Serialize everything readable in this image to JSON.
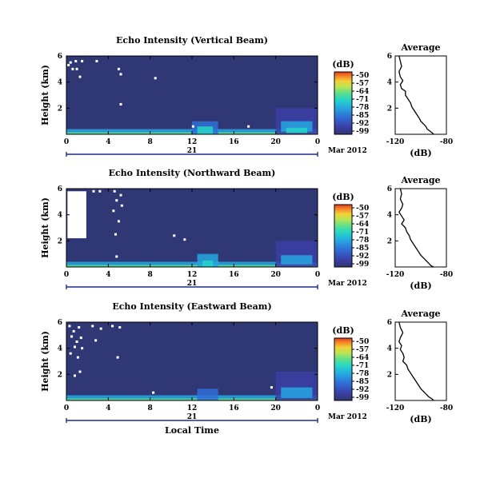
{
  "chart_data": [
    {
      "type": "heatmap",
      "title": "Echo Intensity (Vertical Beam)",
      "ylabel": "Height (km)",
      "x_ticks": [
        "0",
        "4",
        "8",
        "12",
        "16",
        "20",
        "0"
      ],
      "xlim": [
        0,
        24
      ],
      "y_ticks": [
        "6",
        "4",
        "2"
      ],
      "ylim": [
        0,
        6
      ],
      "date_day": "21",
      "date_month_year": "Mar 2012",
      "colorbar": {
        "unit": "(dB)",
        "ticks": [
          "-50",
          "-57",
          "-64",
          "-71",
          "-78",
          "-85",
          "-92",
          "-99"
        ],
        "range": [
          -99,
          -50
        ]
      },
      "noise_gaps": [
        [
          0.2,
          5.3
        ],
        [
          0.4,
          5.5
        ],
        [
          0.9,
          5.6
        ],
        [
          1.5,
          5.6
        ],
        [
          2.9,
          5.6
        ],
        [
          0.6,
          5.0
        ],
        [
          1.0,
          5.0
        ],
        [
          1.3,
          4.4
        ],
        [
          5.0,
          5.0
        ],
        [
          5.2,
          4.6
        ],
        [
          8.5,
          4.3
        ],
        [
          5.2,
          2.3
        ],
        [
          12.1,
          0.6
        ],
        [
          17.4,
          0.6
        ]
      ],
      "signal_regions": [
        {
          "x0": 0.0,
          "x1": 24.0,
          "y0": 0.0,
          "y1": 0.4,
          "level": -82
        },
        {
          "x0": 0.0,
          "x1": 24.0,
          "y0": 0.0,
          "y1": 0.15,
          "level": -72
        },
        {
          "x0": 20.0,
          "x1": 24.0,
          "y0": 0.0,
          "y1": 2.0,
          "level": -92
        },
        {
          "x0": 20.5,
          "x1": 23.5,
          "y0": 0.2,
          "y1": 1.0,
          "level": -85
        },
        {
          "x0": 21.0,
          "x1": 23.0,
          "y0": 0.1,
          "y1": 0.5,
          "level": -78
        },
        {
          "x0": 12.0,
          "x1": 14.5,
          "y0": 0.0,
          "y1": 1.0,
          "level": -86
        },
        {
          "x0": 12.5,
          "x1": 14.0,
          "y0": 0.0,
          "y1": 0.6,
          "level": -78
        }
      ]
    },
    {
      "type": "line",
      "title": "Average",
      "xlabel": "(dB)",
      "x_ticks": [
        "-120",
        "-80"
      ],
      "xlim": [
        -120,
        -80
      ],
      "y_ticks": [
        "6",
        "4",
        "2"
      ],
      "ylim": [
        0,
        6
      ],
      "x": [
        -117,
        -116,
        -115,
        -117,
        -116,
        -114,
        -116,
        -115,
        -112,
        -112,
        -110,
        -108,
        -107,
        -105,
        -103,
        -101,
        -100,
        -98,
        -96,
        -95,
        -93,
        -91,
        -90
      ],
      "y": [
        6.0,
        5.6,
        5.2,
        4.8,
        4.4,
        4.1,
        3.8,
        3.5,
        3.3,
        3.0,
        2.7,
        2.4,
        2.1,
        1.8,
        1.5,
        1.2,
        1.0,
        0.8,
        0.6,
        0.4,
        0.25,
        0.1,
        0.0
      ]
    },
    {
      "type": "heatmap",
      "title": "Echo Intensity (Northward Beam)",
      "ylabel": "Height (km)",
      "x_ticks": [
        "0",
        "4",
        "8",
        "12",
        "16",
        "20",
        "0"
      ],
      "xlim": [
        0,
        24
      ],
      "y_ticks": [
        "6",
        "4",
        "2"
      ],
      "ylim": [
        0,
        6
      ],
      "date_day": "21",
      "date_month_year": "Mar 2012",
      "colorbar": {
        "unit": "(dB)",
        "ticks": [
          "-50",
          "-57",
          "-64",
          "-71",
          "-78",
          "-85",
          "-92",
          "-99"
        ],
        "range": [
          -99,
          -50
        ]
      },
      "noise_block": {
        "x0": 0.1,
        "x1": 1.9,
        "y0": 2.2,
        "y1": 5.8
      },
      "noise_gaps": [
        [
          2.6,
          5.8
        ],
        [
          3.2,
          5.8
        ],
        [
          4.6,
          5.8
        ],
        [
          5.2,
          5.5
        ],
        [
          4.8,
          5.1
        ],
        [
          5.3,
          4.7
        ],
        [
          4.5,
          4.3
        ],
        [
          5.0,
          3.5
        ],
        [
          4.7,
          2.5
        ],
        [
          10.3,
          2.4
        ],
        [
          11.3,
          2.1
        ],
        [
          4.8,
          0.8
        ]
      ],
      "signal_regions": [
        {
          "x0": 0.0,
          "x1": 24.0,
          "y0": 0.0,
          "y1": 0.4,
          "level": -82
        },
        {
          "x0": 0.0,
          "x1": 24.0,
          "y0": 0.0,
          "y1": 0.15,
          "level": -72
        },
        {
          "x0": 20.0,
          "x1": 24.0,
          "y0": 0.0,
          "y1": 2.0,
          "level": -92
        },
        {
          "x0": 20.5,
          "x1": 23.5,
          "y0": 0.2,
          "y1": 0.9,
          "level": -85
        },
        {
          "x0": 12.5,
          "x1": 14.5,
          "y0": 0.0,
          "y1": 1.0,
          "level": -85
        },
        {
          "x0": 13.0,
          "x1": 14.0,
          "y0": 0.0,
          "y1": 0.5,
          "level": -76
        }
      ]
    },
    {
      "type": "line",
      "title": "Average",
      "xlabel": "(dB)",
      "x_ticks": [
        "-120",
        "-80"
      ],
      "xlim": [
        -120,
        -80
      ],
      "y_ticks": [
        "6",
        "4",
        "2"
      ],
      "ylim": [
        0,
        6
      ],
      "x": [
        -116,
        -115,
        -116,
        -114,
        -115,
        -117,
        -115,
        -113,
        -115,
        -112,
        -111,
        -109,
        -108,
        -106,
        -104,
        -102,
        -100,
        -98,
        -96,
        -94,
        -92,
        -90
      ],
      "y": [
        6.0,
        5.6,
        5.2,
        4.8,
        4.5,
        4.2,
        3.9,
        3.6,
        3.3,
        3.0,
        2.7,
        2.4,
        2.1,
        1.8,
        1.5,
        1.2,
        0.9,
        0.7,
        0.5,
        0.3,
        0.1,
        0.0
      ]
    },
    {
      "type": "heatmap",
      "title": "Echo Intensity (Eastward Beam)",
      "ylabel": "Height (km)",
      "xlabel": "Local Time",
      "x_ticks": [
        "0",
        "4",
        "8",
        "12",
        "16",
        "20",
        "0"
      ],
      "xlim": [
        0,
        24
      ],
      "y_ticks": [
        "6",
        "4",
        "2"
      ],
      "ylim": [
        0,
        6
      ],
      "date_day": "21",
      "date_month_year": "Mar 2012",
      "colorbar": {
        "unit": "(dB)",
        "ticks": [
          "-50",
          "-57",
          "-64",
          "-71",
          "-78",
          "-85",
          "-92",
          "-99"
        ],
        "range": [
          -99,
          -50
        ]
      },
      "noise_gaps": [
        [
          0.3,
          5.7
        ],
        [
          0.7,
          5.3
        ],
        [
          1.2,
          5.6
        ],
        [
          0.5,
          4.9
        ],
        [
          1.0,
          4.5
        ],
        [
          1.4,
          4.8
        ],
        [
          0.8,
          4.1
        ],
        [
          1.5,
          4.0
        ],
        [
          0.4,
          3.6
        ],
        [
          1.1,
          3.3
        ],
        [
          2.5,
          5.7
        ],
        [
          3.3,
          5.5
        ],
        [
          4.4,
          5.7
        ],
        [
          5.1,
          5.6
        ],
        [
          2.8,
          4.6
        ],
        [
          4.9,
          3.3
        ],
        [
          1.3,
          2.2
        ],
        [
          0.8,
          1.9
        ],
        [
          19.6,
          1.0
        ],
        [
          8.3,
          0.6
        ]
      ],
      "signal_regions": [
        {
          "x0": 0.0,
          "x1": 24.0,
          "y0": 0.0,
          "y1": 0.4,
          "level": -82
        },
        {
          "x0": 0.0,
          "x1": 24.0,
          "y0": 0.0,
          "y1": 0.15,
          "level": -72
        },
        {
          "x0": 20.0,
          "x1": 24.0,
          "y0": 0.0,
          "y1": 2.2,
          "level": -92
        },
        {
          "x0": 20.5,
          "x1": 23.5,
          "y0": 0.2,
          "y1": 1.0,
          "level": -85
        },
        {
          "x0": 12.5,
          "x1": 14.5,
          "y0": 0.0,
          "y1": 0.9,
          "level": -86
        }
      ]
    },
    {
      "type": "line",
      "title": "Average",
      "xlabel": "(dB)",
      "x_ticks": [
        "-120",
        "-80"
      ],
      "xlim": [
        -120,
        -80
      ],
      "y_ticks": [
        "6",
        "4",
        "2"
      ],
      "ylim": [
        0,
        6
      ],
      "x": [
        -117,
        -116,
        -114,
        -116,
        -117,
        -115,
        -116,
        -114,
        -113,
        -114,
        -111,
        -110,
        -108,
        -106,
        -104,
        -102,
        -100,
        -98,
        -96,
        -94,
        -91,
        -90
      ],
      "y": [
        6.0,
        5.6,
        5.2,
        4.8,
        4.5,
        4.2,
        3.9,
        3.6,
        3.3,
        3.0,
        2.7,
        2.4,
        2.1,
        1.8,
        1.5,
        1.2,
        0.9,
        0.7,
        0.5,
        0.3,
        0.1,
        0.0
      ]
    }
  ],
  "colors": {
    "background_level": "#2f3774",
    "noise_gap": "#ffffff",
    "time_axis": "#1d2b8c",
    "colormap": [
      "#30366f",
      "#3b3fa6",
      "#2f6fd6",
      "#26a6e0",
      "#26d4c8",
      "#5de08b",
      "#b9e554",
      "#f2d23a",
      "#f4882a",
      "#e23b1e"
    ]
  }
}
